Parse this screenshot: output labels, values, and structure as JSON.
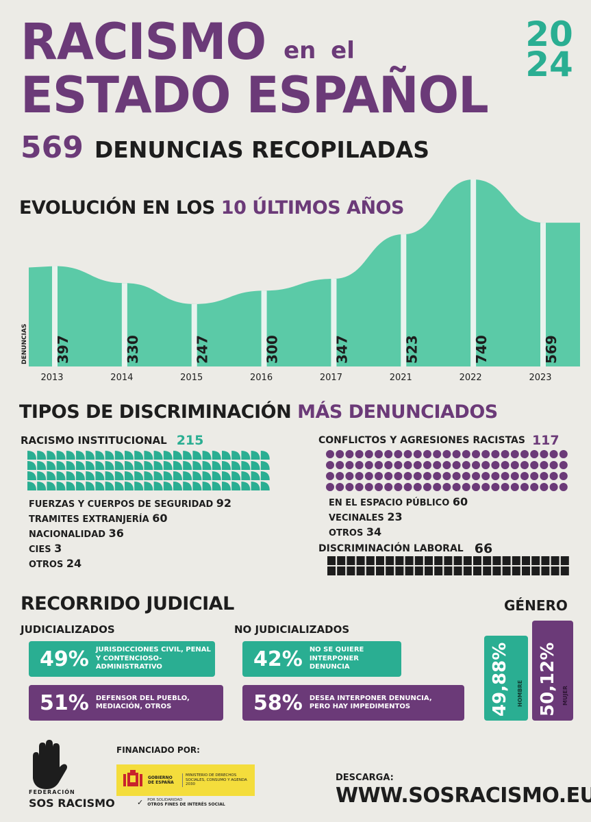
{
  "header": {
    "line1": "RACISMO",
    "line1_small": "en el",
    "line2": "ESTADO ESPAÑOL",
    "year_top": "20",
    "year_bottom": "24",
    "total_number": "569",
    "total_label": "DENUNCIAS RECOPILADAS"
  },
  "evolution": {
    "title_plain": "EVOLUCIÓN EN LOS",
    "title_highlight": "10 ÚLTIMOS AÑOS"
  },
  "chart_data": {
    "type": "area",
    "categories": [
      "2013",
      "2014",
      "2015",
      "2016",
      "2017",
      "2021",
      "2022",
      "2023"
    ],
    "values": [
      397,
      330,
      247,
      300,
      347,
      523,
      740,
      569
    ],
    "ylabel": "DENUNCIAS",
    "colors": {
      "fill": "#5bcaa7",
      "separator": "#e8f3ee",
      "text": "#1d1d1d"
    }
  },
  "types": {
    "title_plain": "TIPOS DE DISCRIMINACIÓN",
    "title_highlight": "MÁS DENUNCIADOS",
    "institutional": {
      "label": "RACISMO INSTITUCIONAL",
      "total": "215",
      "items": [
        {
          "label": "FUERZAS Y CUERPOS DE SEGURIDAD",
          "value": "92"
        },
        {
          "label": "TRAMITES EXTRANJERÍA",
          "value": "60"
        },
        {
          "label": "NACIONALIDAD",
          "value": "36"
        },
        {
          "label": "CIES",
          "value": "3"
        },
        {
          "label": "OTROS",
          "value": "24"
        }
      ]
    },
    "conflicts": {
      "label": "CONFLICTOS Y AGRESIONES RACISTAS",
      "total": "117",
      "items": [
        {
          "label": "EN EL ESPACIO PÚBLICO",
          "value": "60"
        },
        {
          "label": "VECINALES",
          "value": "23"
        },
        {
          "label": "OTROS",
          "value": "34"
        }
      ]
    },
    "labor": {
      "label": "DISCRIMINACIÓN LABORAL",
      "total": "66"
    }
  },
  "judicial": {
    "title": "RECORRIDO JUDICIAL",
    "judicialized_label": "JUDICIALIZADOS",
    "non_judicialized_label": "NO JUDICIALIZADOS",
    "boxes": {
      "j1": {
        "pct": "49%",
        "text": "JURISDICCIONES CIVIL, PENAL Y CONTENCIOSO-ADMINISTRATIVO"
      },
      "j2": {
        "pct": "51%",
        "text": "DEFENSOR DEL PUEBLO, MEDIACIÓN, OTROS"
      },
      "n1": {
        "pct": "42%",
        "text": "NO SE QUIERE INTERPONER DENUNCIA"
      },
      "n2": {
        "pct": "58%",
        "text": "DESEA INTERPONER DENUNCIA, PERO HAY IMPEDIMENTOS"
      }
    }
  },
  "gender": {
    "title": "GÉNERO",
    "men_pct": "49,88%",
    "men_label": "HOMBRE",
    "women_pct": "50,12%",
    "women_label": "MUJER"
  },
  "footer": {
    "federation_small": "FEDERACIÓN",
    "federation_name": "SOS RACISMO",
    "financed_by": "FINANCIADO POR:",
    "gov_label": "GOBIERNO DE ESPAÑA",
    "ministry_label": "MINISTERIO DE DERECHOS SOCIALES, CONSUMO Y AGENDA 2030",
    "solidarity_small": "POR SOLIDARIDAD",
    "solidarity_main": "OTROS FINES DE INTERÉS SOCIAL",
    "download_label": "DESCARGA:",
    "url": "WWW.SOSRACISMO.EU"
  }
}
